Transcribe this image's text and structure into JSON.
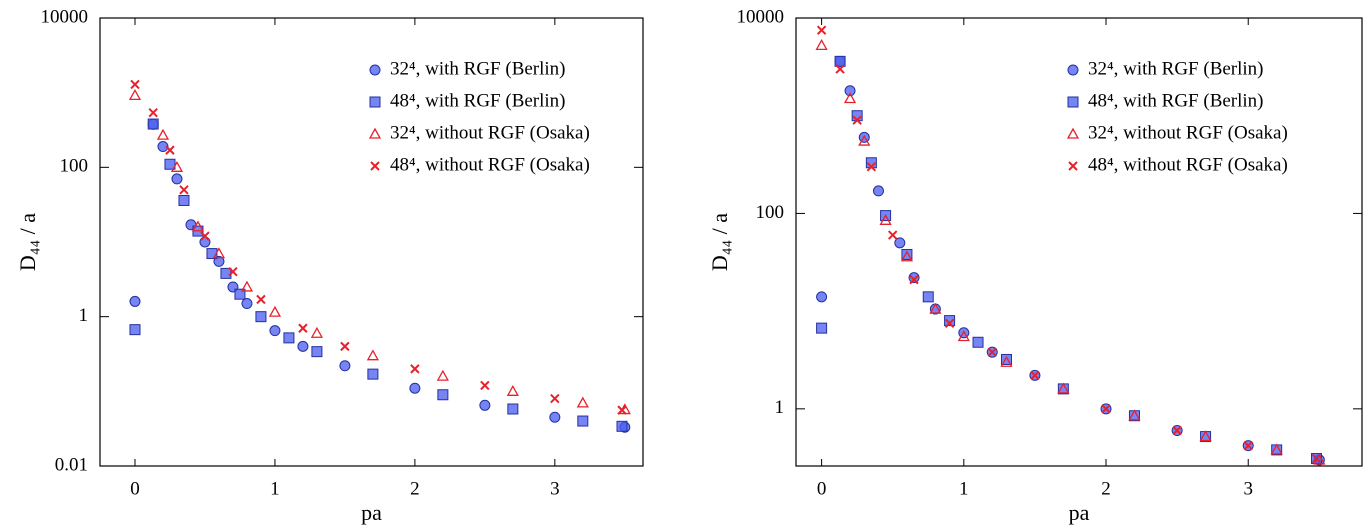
{
  "chart_data": [
    {
      "type": "scatter",
      "xlabel": "pa",
      "ylabel": "D₄₄ / a",
      "log_y": true,
      "xlim": [
        -0.25,
        3.63
      ],
      "ylim": [
        0.01,
        10000
      ],
      "xticks": [
        0,
        1,
        2,
        3
      ],
      "yticks": [
        0.01,
        1,
        100,
        10000
      ],
      "legend": "upper right",
      "series": [
        {
          "name": "32⁴, with RGF (Berlin)",
          "color": "#4a5cf0",
          "marker": "circle",
          "x": [
            0,
            0.13,
            0.2,
            0.3,
            0.4,
            0.5,
            0.6,
            0.7,
            0.8,
            1.0,
            1.2,
            1.5,
            2.0,
            2.5,
            3.0,
            3.5
          ],
          "values": [
            1.6,
            377,
            190,
            70,
            17,
            10,
            5.5,
            2.5,
            1.5,
            0.65,
            0.4,
            0.22,
            0.11,
            0.065,
            0.045,
            0.033
          ]
        },
        {
          "name": "48⁴, with RGF (Berlin)",
          "color": "#4a5cf0",
          "marker": "square",
          "x": [
            0,
            0.13,
            0.25,
            0.35,
            0.45,
            0.55,
            0.65,
            0.75,
            0.9,
            1.1,
            1.3,
            1.7,
            2.2,
            2.7,
            3.2,
            3.48
          ],
          "values": [
            0.67,
            380,
            110,
            36,
            14,
            7,
            3.8,
            2,
            1.0,
            0.52,
            0.34,
            0.17,
            0.09,
            0.058,
            0.04,
            0.034
          ]
        },
        {
          "name": "32⁴, without RGF (Osaka)",
          "color": "#e8202a",
          "marker": "triangle",
          "x": [
            0,
            0.2,
            0.3,
            0.45,
            0.6,
            0.8,
            1.0,
            1.3,
            1.7,
            2.2,
            2.7,
            3.2,
            3.5
          ],
          "values": [
            920,
            270,
            100,
            16,
            7,
            2.5,
            1.15,
            0.6,
            0.3,
            0.16,
            0.1,
            0.07,
            0.057
          ]
        },
        {
          "name": "48⁴, without RGF (Osaka)",
          "color": "#e8202a",
          "marker": "cross",
          "x": [
            0,
            0.13,
            0.25,
            0.35,
            0.5,
            0.7,
            0.9,
            1.2,
            1.5,
            2.0,
            2.5,
            3.0,
            3.48
          ],
          "values": [
            1290,
            540,
            170,
            50,
            12,
            4,
            1.7,
            0.7,
            0.4,
            0.2,
            0.12,
            0.08,
            0.056
          ]
        }
      ]
    },
    {
      "type": "scatter",
      "xlabel": "pa",
      "ylabel": "D₄₄ / a",
      "log_y": true,
      "xlim": [
        -0.18,
        3.8
      ],
      "ylim": [
        0.26,
        10000
      ],
      "xticks": [
        0,
        1,
        2,
        3
      ],
      "yticks": [
        1,
        100,
        10000
      ],
      "legend": "upper right",
      "series": [
        {
          "name": "32⁴, with RGF (Berlin)",
          "color": "#4a5cf0",
          "marker": "circle",
          "x": [
            0,
            0.13,
            0.2,
            0.3,
            0.4,
            0.55,
            0.65,
            0.8,
            1.0,
            1.2,
            1.5,
            2.0,
            2.5,
            3.0,
            3.5
          ],
          "values": [
            14,
            3600,
            1800,
            600,
            170,
            50,
            22,
            10.5,
            6,
            3.8,
            2.2,
            1.0,
            0.6,
            0.42,
            0.3
          ]
        },
        {
          "name": "48⁴, with RGF (Berlin)",
          "color": "#4a5cf0",
          "marker": "square",
          "x": [
            0,
            0.13,
            0.25,
            0.35,
            0.45,
            0.6,
            0.75,
            0.9,
            1.1,
            1.3,
            1.7,
            2.2,
            2.7,
            3.2,
            3.48
          ],
          "values": [
            6.7,
            3600,
            1000,
            330,
            95,
            38,
            14,
            8,
            4.8,
            3.2,
            1.6,
            0.85,
            0.52,
            0.38,
            0.31
          ]
        },
        {
          "name": "32⁴, without RGF (Osaka)",
          "color": "#e8202a",
          "marker": "triangle",
          "x": [
            0,
            0.2,
            0.3,
            0.45,
            0.6,
            0.8,
            1.0,
            1.3,
            1.7,
            2.2,
            2.7,
            3.2,
            3.5
          ],
          "values": [
            5250,
            1500,
            550,
            85,
            36,
            10.5,
            5.5,
            3,
            1.6,
            0.85,
            0.52,
            0.38,
            0.3
          ]
        },
        {
          "name": "48⁴, without RGF (Osaka)",
          "color": "#e8202a",
          "marker": "cross",
          "x": [
            0,
            0.13,
            0.25,
            0.35,
            0.5,
            0.65,
            0.9,
            1.2,
            1.5,
            2.0,
            2.5,
            3.0,
            3.48
          ],
          "values": [
            7500,
            3000,
            900,
            300,
            60,
            21,
            7.5,
            3.8,
            2.2,
            1.0,
            0.6,
            0.42,
            0.31
          ]
        }
      ]
    }
  ]
}
